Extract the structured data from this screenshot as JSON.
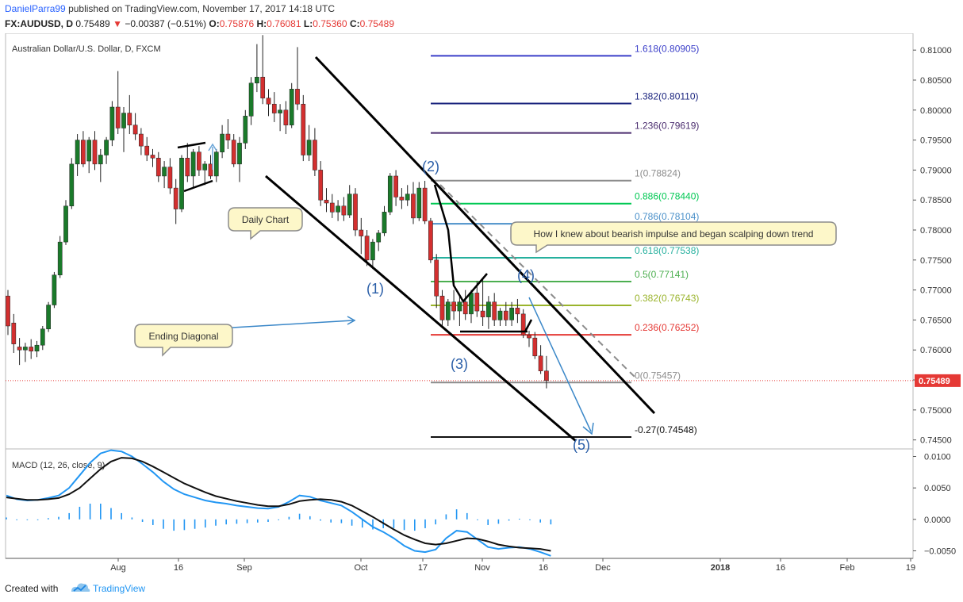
{
  "header": {
    "author": "DanielParra99",
    "published_text": "published on TradingView.com, November 17, 2017 14:18 UTC",
    "symbol": "FX:AUDUSD, D",
    "last": "0.75489",
    "change": "−0.00387 (−0.51%)",
    "open_label": "O:",
    "open": "0.75876",
    "high_label": "H:",
    "high": "0.76081",
    "low_label": "L:",
    "low": "0.75360",
    "close_label": "C:",
    "close": "0.75489"
  },
  "chart_data": [
    {
      "type": "candlestick",
      "title": "Australian Dollar/U.S. Dollar, D, FXCM",
      "ylim": [
        0.7435,
        0.8128
      ],
      "y_ticks": [
        "0.81000",
        "0.80500",
        "0.80000",
        "0.79500",
        "0.79000",
        "0.78500",
        "0.78000",
        "0.77500",
        "0.77000",
        "0.76500",
        "0.76000",
        "0.75500",
        "0.75000",
        "0.74500"
      ],
      "x_ticks": [
        "Aug",
        "16",
        "Sep",
        "Oct",
        "17",
        "Nov",
        "16",
        "Dec",
        "2018",
        "16",
        "Feb",
        "19"
      ],
      "last_price_label": "0.75489",
      "ohlc": [
        [
          0.769,
          0.77,
          0.7625,
          0.764
        ],
        [
          0.7645,
          0.766,
          0.7595,
          0.761
        ],
        [
          0.7605,
          0.762,
          0.7575,
          0.76
        ],
        [
          0.76,
          0.7612,
          0.758,
          0.7605
        ],
        [
          0.7605,
          0.7618,
          0.7585,
          0.7598
        ],
        [
          0.7598,
          0.7615,
          0.7588,
          0.7608
        ],
        [
          0.7608,
          0.764,
          0.76,
          0.7635
        ],
        [
          0.7635,
          0.768,
          0.763,
          0.7675
        ],
        [
          0.7675,
          0.773,
          0.767,
          0.7725
        ],
        [
          0.7725,
          0.779,
          0.772,
          0.778
        ],
        [
          0.778,
          0.785,
          0.7775,
          0.784
        ],
        [
          0.784,
          0.792,
          0.7835,
          0.791
        ],
        [
          0.791,
          0.796,
          0.789,
          0.795
        ],
        [
          0.795,
          0.7965,
          0.7905,
          0.791
        ],
        [
          0.7915,
          0.7955,
          0.7895,
          0.795
        ],
        [
          0.795,
          0.7965,
          0.79,
          0.791
        ],
        [
          0.791,
          0.7935,
          0.788,
          0.7925
        ],
        [
          0.7925,
          0.7955,
          0.791,
          0.795
        ],
        [
          0.795,
          0.8015,
          0.794,
          0.8005
        ],
        [
          0.8005,
          0.8065,
          0.796,
          0.797
        ],
        [
          0.797,
          0.8005,
          0.793,
          0.7995
        ],
        [
          0.7995,
          0.8025,
          0.796,
          0.7975
        ],
        [
          0.7975,
          0.7995,
          0.795,
          0.796
        ],
        [
          0.796,
          0.797,
          0.7925,
          0.794
        ],
        [
          0.794,
          0.7955,
          0.7915,
          0.7925
        ],
        [
          0.7925,
          0.7935,
          0.7905,
          0.792
        ],
        [
          0.792,
          0.793,
          0.788,
          0.789
        ],
        [
          0.789,
          0.7915,
          0.787,
          0.7905
        ],
        [
          0.7905,
          0.792,
          0.786,
          0.787
        ],
        [
          0.787,
          0.7885,
          0.781,
          0.7835
        ],
        [
          0.7835,
          0.7925,
          0.783,
          0.792
        ],
        [
          0.792,
          0.7945,
          0.788,
          0.789
        ],
        [
          0.789,
          0.7935,
          0.787,
          0.793
        ],
        [
          0.793,
          0.794,
          0.789,
          0.79
        ],
        [
          0.79,
          0.7915,
          0.7875,
          0.791
        ],
        [
          0.791,
          0.7925,
          0.7885,
          0.789
        ],
        [
          0.789,
          0.7935,
          0.788,
          0.793
        ],
        [
          0.793,
          0.7975,
          0.792,
          0.796
        ],
        [
          0.796,
          0.7985,
          0.7935,
          0.795
        ],
        [
          0.795,
          0.796,
          0.7905,
          0.791
        ],
        [
          0.791,
          0.7955,
          0.788,
          0.7945
        ],
        [
          0.7945,
          0.8,
          0.7935,
          0.799
        ],
        [
          0.799,
          0.8055,
          0.7975,
          0.8045
        ],
        [
          0.8045,
          0.811,
          0.803,
          0.8055
        ],
        [
          0.8055,
          0.8125,
          0.801,
          0.802
        ],
        [
          0.802,
          0.8035,
          0.799,
          0.801
        ],
        [
          0.801,
          0.803,
          0.798,
          0.7995
        ],
        [
          0.7995,
          0.801,
          0.7965,
          0.8
        ],
        [
          0.8,
          0.8015,
          0.796,
          0.7975
        ],
        [
          0.7975,
          0.8045,
          0.797,
          0.8035
        ],
        [
          0.8035,
          0.8105,
          0.8,
          0.801
        ],
        [
          0.801,
          0.8025,
          0.7915,
          0.7925
        ],
        [
          0.7925,
          0.7975,
          0.7915,
          0.795
        ],
        [
          0.795,
          0.797,
          0.789,
          0.79
        ],
        [
          0.79,
          0.7915,
          0.784,
          0.785
        ],
        [
          0.785,
          0.787,
          0.783,
          0.7845
        ],
        [
          0.7845,
          0.786,
          0.782,
          0.783
        ],
        [
          0.783,
          0.785,
          0.7815,
          0.784
        ],
        [
          0.784,
          0.7855,
          0.7815,
          0.7825
        ],
        [
          0.7825,
          0.7875,
          0.782,
          0.786
        ],
        [
          0.786,
          0.787,
          0.779,
          0.78
        ],
        [
          0.78,
          0.782,
          0.776,
          0.779
        ],
        [
          0.779,
          0.78,
          0.774,
          0.775
        ],
        [
          0.775,
          0.7785,
          0.7735,
          0.778
        ],
        [
          0.778,
          0.78,
          0.7765,
          0.7795
        ],
        [
          0.7795,
          0.784,
          0.779,
          0.783
        ],
        [
          0.783,
          0.7895,
          0.7825,
          0.789
        ],
        [
          0.789,
          0.79,
          0.784,
          0.7855
        ],
        [
          0.7855,
          0.787,
          0.7835,
          0.785
        ],
        [
          0.785,
          0.7875,
          0.784,
          0.786
        ],
        [
          0.786,
          0.788,
          0.781,
          0.782
        ],
        [
          0.782,
          0.788,
          0.7815,
          0.787
        ],
        [
          0.787,
          0.7882,
          0.781,
          0.7815
        ],
        [
          0.7815,
          0.782,
          0.7745,
          0.775
        ],
        [
          0.775,
          0.776,
          0.767,
          0.769
        ],
        [
          0.769,
          0.77,
          0.764,
          0.765
        ],
        [
          0.765,
          0.7685,
          0.764,
          0.768
        ],
        [
          0.768,
          0.77,
          0.765,
          0.7665
        ],
        [
          0.7665,
          0.769,
          0.764,
          0.768
        ],
        [
          0.768,
          0.77,
          0.765,
          0.766
        ],
        [
          0.766,
          0.77,
          0.7645,
          0.7695
        ],
        [
          0.7695,
          0.7715,
          0.7655,
          0.7665
        ],
        [
          0.7665,
          0.772,
          0.764,
          0.7655
        ],
        [
          0.7655,
          0.769,
          0.7635,
          0.768
        ],
        [
          0.768,
          0.7695,
          0.764,
          0.765
        ],
        [
          0.765,
          0.767,
          0.764,
          0.7665
        ],
        [
          0.7665,
          0.768,
          0.764,
          0.765
        ],
        [
          0.765,
          0.768,
          0.764,
          0.767
        ],
        [
          0.767,
          0.7685,
          0.7645,
          0.766
        ],
        [
          0.766,
          0.7668,
          0.762,
          0.7625
        ],
        [
          0.7625,
          0.7632,
          0.7605,
          0.762
        ],
        [
          0.762,
          0.763,
          0.7585,
          0.759
        ],
        [
          0.759,
          0.7608,
          0.756,
          0.7565
        ],
        [
          0.7565,
          0.759,
          0.7536,
          0.7549
        ]
      ],
      "fib_levels": [
        {
          "label": "1.618(0.80905)",
          "value": 0.80905,
          "color": "#3b3fc9"
        },
        {
          "label": "1.382(0.80110)",
          "value": 0.8011,
          "color": "#1a237e"
        },
        {
          "label": "1.236(0.79619)",
          "value": 0.79619,
          "color": "#4a2c6e"
        },
        {
          "label": "1(0.78824)",
          "value": 0.78824,
          "color": "#8c8c8c"
        },
        {
          "label": "0.886(0.78440)",
          "value": 0.7844,
          "color": "#00c853"
        },
        {
          "label": "0.786(0.78104)",
          "value": 0.78104,
          "color": "#4a90c9"
        },
        {
          "label": "0.618(0.77538)",
          "value": 0.77538,
          "color": "#26b09e"
        },
        {
          "label": "0.5(0.77141)",
          "value": 0.77141,
          "color": "#4caf50"
        },
        {
          "label": "0.382(0.76743)",
          "value": 0.76743,
          "color": "#9ab42c"
        },
        {
          "label": "0.236(0.76252)",
          "value": 0.76252,
          "color": "#e53935"
        },
        {
          "label": "0(0.75457)",
          "value": 0.75457,
          "color": "#8c8c8c"
        },
        {
          "label": "-0.27(0.74548)",
          "value": 0.74548,
          "color": "#111111"
        }
      ],
      "wave_labels": [
        "(1)",
        "(2)",
        "(3)",
        "(4)",
        "(5)"
      ],
      "callouts": {
        "daily": "Daily Chart",
        "ending": "Ending Diagonal",
        "impulse": "How I knew  about bearish impulse and began scalping down trend"
      }
    },
    {
      "type": "line",
      "title": "MACD (12, 26, close, 9)",
      "ylim": [
        -0.0062,
        0.0112
      ],
      "y_ticks": [
        "0.0100",
        "0.0050",
        "0.0000",
        "−0.0050"
      ],
      "series": [
        {
          "color": "#2196f3",
          "values": [
            0.0038,
            0.0032,
            0.003,
            0.0031,
            0.0034,
            0.0038,
            0.005,
            0.007,
            0.009,
            0.0105,
            0.011,
            0.0108,
            0.01,
            0.0088,
            0.0075,
            0.006,
            0.0048,
            0.004,
            0.0035,
            0.003,
            0.0027,
            0.0025,
            0.0022,
            0.002,
            0.0018,
            0.0017,
            0.002,
            0.0028,
            0.0038,
            0.0036,
            0.003,
            0.0026,
            0.0022,
            0.0012,
            0.0,
            -0.0012,
            -0.002,
            -0.003,
            -0.0042,
            -0.005,
            -0.0052,
            -0.0048,
            -0.003,
            -0.0018,
            -0.002,
            -0.0032,
            -0.0044,
            -0.0047,
            -0.0045,
            -0.0044,
            -0.0047,
            -0.0052,
            -0.0058
          ]
        },
        {
          "color": "#111111",
          "values": [
            0.0035,
            0.0033,
            0.0031,
            0.0031,
            0.0032,
            0.0034,
            0.004,
            0.005,
            0.0065,
            0.008,
            0.0092,
            0.0098,
            0.0097,
            0.0092,
            0.0084,
            0.0075,
            0.0066,
            0.0057,
            0.005,
            0.0043,
            0.0037,
            0.0033,
            0.0029,
            0.0026,
            0.0023,
            0.0021,
            0.0021,
            0.0024,
            0.0029,
            0.0031,
            0.0032,
            0.0031,
            0.0028,
            0.0022,
            0.0013,
            0.0004,
            -0.0006,
            -0.0016,
            -0.0025,
            -0.0032,
            -0.0038,
            -0.004,
            -0.0038,
            -0.0034,
            -0.003,
            -0.0031,
            -0.0035,
            -0.004,
            -0.0043,
            -0.0045,
            -0.0046,
            -0.0047,
            -0.005
          ]
        }
      ],
      "histogram": [
        0.0003,
        -0.0001,
        -0.0001,
        0.0,
        0.0002,
        0.0004,
        0.001,
        0.002,
        0.0025,
        0.0025,
        0.0018,
        0.001,
        0.0003,
        -0.0004,
        -0.0009,
        -0.0015,
        -0.0018,
        -0.0017,
        -0.0015,
        -0.0013,
        -0.001,
        -0.0008,
        -0.0007,
        -0.0006,
        -0.0005,
        -0.0004,
        -0.0001,
        0.0004,
        0.0009,
        0.0005,
        -0.0002,
        -0.0005,
        -0.0006,
        -0.001,
        -0.0013,
        -0.0016,
        -0.0014,
        -0.0014,
        -0.0017,
        -0.0018,
        -0.0014,
        -0.0008,
        0.0008,
        0.0016,
        0.001,
        -0.0001,
        -0.0009,
        -0.0007,
        -0.0002,
        0.0001,
        -0.0001,
        -0.0005,
        -0.0008
      ]
    }
  ],
  "footer": {
    "created_with": "Created with",
    "brand": "TradingView"
  },
  "colors": {
    "up": "#1a7a2a",
    "down": "#d32f2f",
    "price_tag": "#e53935",
    "macd_line": "#2196f3",
    "signal_line": "#111111"
  }
}
